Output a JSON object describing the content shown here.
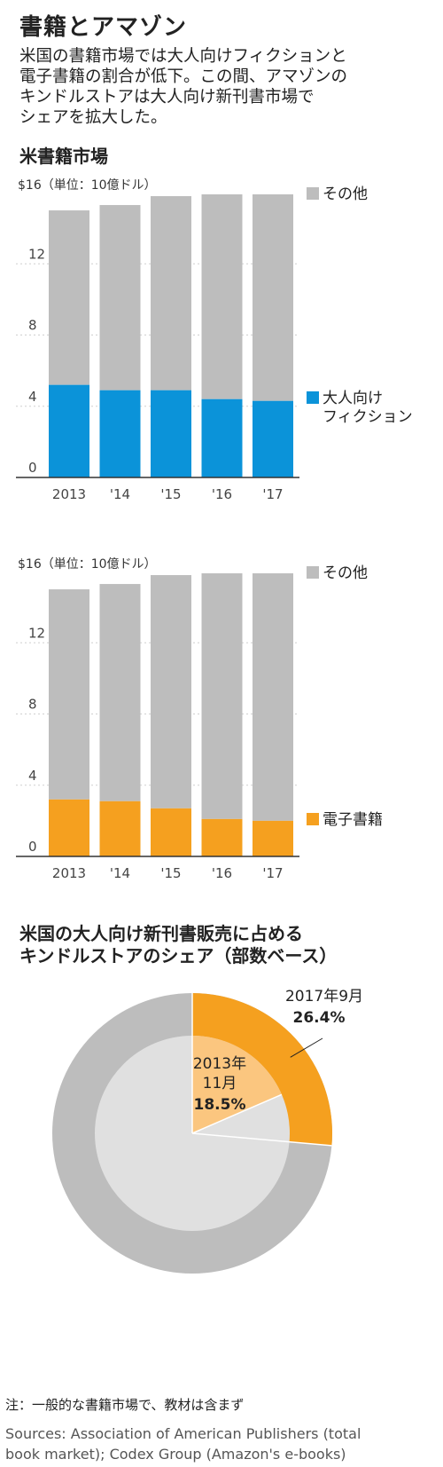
{
  "header": {
    "title": "書籍とアマゾン",
    "description_lines": [
      "米国の書籍市場では大人向けフィクションと",
      "電子書籍の割合が低下。この間、アマゾンの",
      "キンドルストアは大人向け新刊書市場で",
      "シェアを拡大した。"
    ]
  },
  "section1": {
    "title": "米書籍市場"
  },
  "section2": {
    "title_lines": [
      "米国の大人向け新刊書販売に占める",
      "キンドルストアのシェア（部数ベース）"
    ]
  },
  "footer": {
    "note": "注：一般的な書籍市場で、教材は含まず",
    "sources_lines": [
      "Sources: Association of American Publishers (total",
      "book market); Codex Group (Amazon's e-books)"
    ]
  },
  "colors": {
    "other": "#bdbdbd",
    "fiction": "#0b93d9",
    "ebook": "#f5a01f",
    "ebook_light": "#fbc67f",
    "inner_other": "#e0e0e0"
  },
  "chart_data": [
    {
      "type": "bar",
      "stacked": true,
      "unit_label": "$16（単位：10億ドル）",
      "categories": [
        "2013",
        "'14",
        "'15",
        "'16",
        "'17"
      ],
      "ylim": [
        0,
        16
      ],
      "yticks": [
        0,
        4,
        8,
        12
      ],
      "series": [
        {
          "name": "大人向けフィクション",
          "name_lines": [
            "大人向け",
            "フィクション"
          ],
          "color": "#0b93d9",
          "values": [
            5.2,
            4.9,
            4.9,
            4.4,
            4.3
          ]
        },
        {
          "name": "その他",
          "name_lines": [
            "その他"
          ],
          "color": "#bdbdbd",
          "values": [
            9.8,
            10.4,
            10.9,
            11.5,
            11.6
          ]
        }
      ],
      "totals": [
        15.0,
        15.3,
        15.8,
        15.9,
        15.9
      ]
    },
    {
      "type": "bar",
      "stacked": true,
      "unit_label": "$16（単位：10億ドル）",
      "categories": [
        "2013",
        "'14",
        "'15",
        "'16",
        "'17"
      ],
      "ylim": [
        0,
        16
      ],
      "yticks": [
        0,
        4,
        8,
        12
      ],
      "series": [
        {
          "name": "電子書籍",
          "name_lines": [
            "電子書籍"
          ],
          "color": "#f5a01f",
          "values": [
            3.2,
            3.1,
            2.7,
            2.1,
            2.0
          ]
        },
        {
          "name": "その他",
          "name_lines": [
            "その他"
          ],
          "color": "#bdbdbd",
          "values": [
            11.8,
            12.2,
            13.1,
            13.8,
            13.9
          ]
        }
      ],
      "totals": [
        15.0,
        15.3,
        15.8,
        15.9,
        15.9
      ]
    },
    {
      "type": "pie",
      "rings": [
        {
          "label_lines": [
            "2017年9月"
          ],
          "value_label": "26.4%",
          "value": 26.4
        },
        {
          "label_lines": [
            "2013年",
            "11月"
          ],
          "value_label": "18.5%",
          "value": 18.5
        }
      ]
    }
  ]
}
